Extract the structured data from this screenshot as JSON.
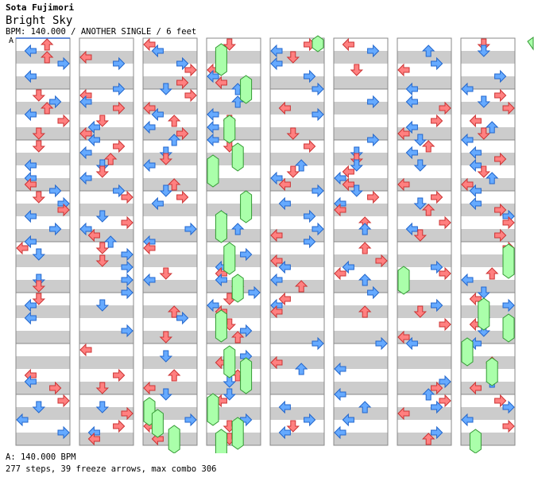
{
  "header": {
    "artist": "Sota Fujimori",
    "title": "Bright Sky",
    "meta": "BPM: 140.000 / ANOTHER SINGLE / 6 feet",
    "section_letter": "A"
  },
  "footer": {
    "bpm_line": "A: 140.000 BPM",
    "stats_line": "277 steps, 39 freeze arrows, max combo 306"
  },
  "colors": {
    "band_gray": "#cccccc",
    "band_white": "#ffffff",
    "quarter_arrow": "#ff8080",
    "quarter_stroke": "#cc3333",
    "eighth_arrow": "#66aaff",
    "eighth_stroke": "#2266cc",
    "freeze_fill": "#aaffaa",
    "freeze_stroke": "#339933",
    "column_border": "#888888"
  },
  "icons": {
    "left": "left-arrow-icon",
    "down": "down-arrow-icon",
    "up": "up-arrow-icon",
    "right": "right-arrow-icon"
  },
  "stats": {
    "steps": 277,
    "freeze_arrows": 39,
    "max_combo": 306,
    "bpm": 140.0,
    "columns": 8,
    "measures_per_column": 8
  }
}
